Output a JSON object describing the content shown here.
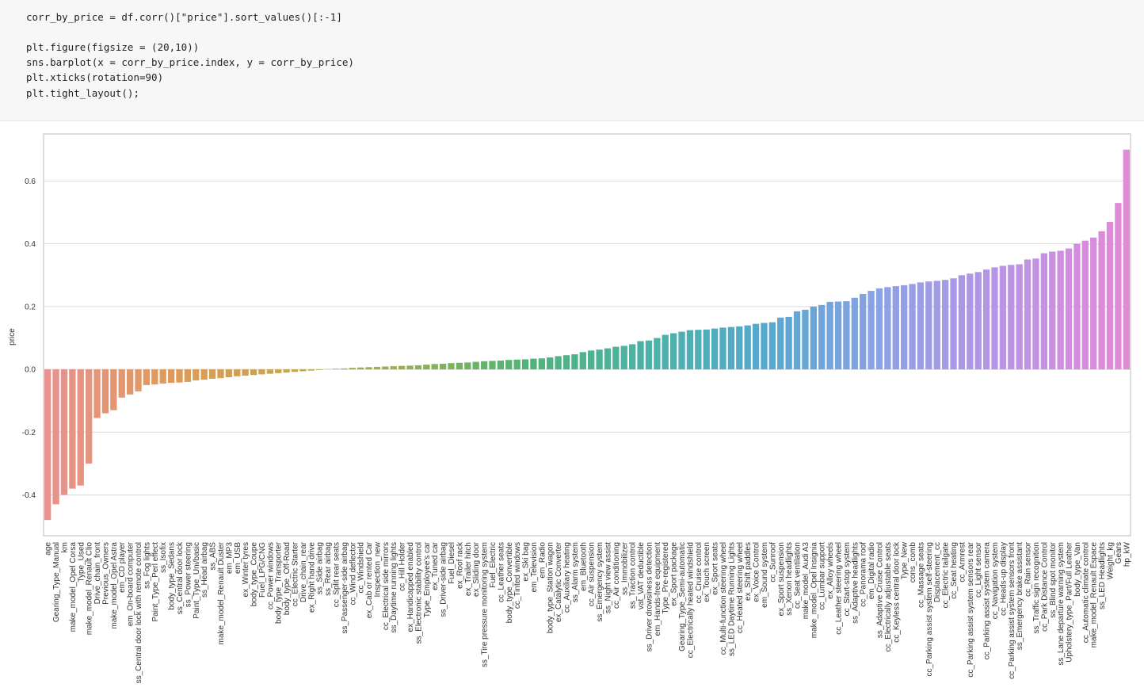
{
  "code": {
    "lines": [
      "corr_by_price = df.corr()[\"price\"].sort_values()[:-1]",
      "plt.figure(figsize = (20,10))",
      "sns.barplot(x = corr_by_price.index, y = corr_by_price)",
      "plt.xticks(rotation=90)",
      "plt.tight_layout();"
    ]
  },
  "chart_data": {
    "type": "bar",
    "y_label": "price",
    "categories": [
      "age",
      "Gearing_Type_Manual",
      "km",
      "make_model_Opel Corsa",
      "Type_Used",
      "make_model_Renault Clio",
      "Drive_chain_front",
      "Previous_Owners",
      "make_model_Opel Astra",
      "em_CD player",
      "em_On-board computer",
      "ss_Central door lock with remote control",
      "ss_Fog lights",
      "Paint_Type_Perl effect",
      "ss_Isofix",
      "body_type_Sedans",
      "ss_Central door lock",
      "ss_Power steering",
      "Paint_Type_Uni/basic",
      "ss_Head airbag",
      "ss_ABS",
      "make_model_Renault Duster",
      "em_MP3",
      "em_USB",
      "ex_Winter tyres",
      "body_type_Coupe",
      "Fuel_LPG/CNG",
      "cc_Power windows",
      "body_type_Transporter",
      "body_type_Off-Road",
      "cc_Electric Starter",
      "Drive_chain_rear",
      "ex_Right hand drive",
      "ss_Side airbag",
      "ss_Rear airbag",
      "cc_Split rear seats",
      "ss_Passenger-side airbag",
      "cc_Wind deflector",
      "cc_Windshield",
      "ex_Cab or rented Car",
      "Inspection_new",
      "cc_Electrical side mirrors",
      "ss_Daytime running lights",
      "cc_Hill Holder",
      "ex_Handicapped enabled",
      "ss_Electronic stability control",
      "Type_Employee's car",
      "ex_Tuned car",
      "ss_Driver-side airbag",
      "Fuel_Diesel",
      "ex_Roof rack",
      "ex_Trailer hitch",
      "ex_Sliding door",
      "ss_Tire pressure monitoring system",
      "Fuel_Electric",
      "cc_Leather seats",
      "body_type_Convertible",
      "cc_Tinted windows",
      "ex_Ski bag",
      "em_Television",
      "em_Radio",
      "body_type_Station wagon",
      "ex_Catalytic Converter",
      "cc_Auxiliary heating",
      "ss_Alarm system",
      "em_Bluetooth",
      "cc_Air suspension",
      "ss_Emergency system",
      "ss_Night view assist",
      "cc_Air conditioning",
      "ss_Immobilizer",
      "ss_Traction control",
      "vat_VAT deductible",
      "ss_Driver drowsiness detection",
      "em_Hands-free equipment",
      "Type_Pre-registered",
      "ex_Sport package",
      "Gearing_Type_Semi-automatic",
      "cc_Electrically heated windshield",
      "cc_Cruise control",
      "ex_Touch screen",
      "ex_Sport seats",
      "cc_Multi-function steering wheel",
      "ss_LED Daytime Running Lights",
      "cc_Heated steering wheel",
      "ex_Shift paddles",
      "ex_Voice Control",
      "em_Sound system",
      "cc_Sunroof",
      "ex_Sport suspension",
      "ss_Xenon headlights",
      "cc_Seat ventilation",
      "make_model_Audi A3",
      "make_model_Opel Insignia",
      "cc_Lumbar support",
      "ex_Alloy wheels",
      "cc_Leather steering wheel",
      "cc_Start-stop system",
      "ss_Adaptive headlights",
      "cc_Panorama roof",
      "em_Digital radio",
      "ss_Adaptive Cruise Control",
      "cc_Electrically adjustable seats",
      "cc_Keyless central door lock",
      "Type_New",
      "cons_comb",
      "cc_Massage seats",
      "cc_Parking assist system self-steering",
      "Displacement_cc",
      "cc_Electric tailgate",
      "cc_Seat heating",
      "cc_Armrest",
      "cc_Parking assist system sensors rear",
      "cc_Light sensor",
      "cc_Parking assist system camera",
      "cc_Navigation system",
      "cc_Heads-up display",
      "cc_Parking assist system sensors front",
      "ss_Emergency brake assistant",
      "cc_Rain sensor",
      "ss_Traffic sign recognition",
      "cc_Park Distance Control",
      "ss_Blind spot monitor",
      "ss_Lane departure warning system",
      "Upholstery_type_Part/Full Leather",
      "body_type_Van",
      "cc_Automatic climate control",
      "make_model_Renault Espace",
      "ss_LED Headlights",
      "Weight_kg",
      "Gears",
      "hp_kW"
    ],
    "values": [
      -0.48,
      -0.43,
      -0.4,
      -0.38,
      -0.37,
      -0.3,
      -0.155,
      -0.14,
      -0.13,
      -0.09,
      -0.08,
      -0.07,
      -0.05,
      -0.048,
      -0.045,
      -0.043,
      -0.042,
      -0.04,
      -0.035,
      -0.033,
      -0.03,
      -0.028,
      -0.025,
      -0.022,
      -0.02,
      -0.018,
      -0.016,
      -0.014,
      -0.012,
      -0.01,
      -0.008,
      -0.006,
      -0.004,
      -0.002,
      0.001,
      0.002,
      0.003,
      0.005,
      0.006,
      0.007,
      0.008,
      0.009,
      0.01,
      0.011,
      0.012,
      0.013,
      0.015,
      0.017,
      0.018,
      0.02,
      0.021,
      0.022,
      0.024,
      0.026,
      0.027,
      0.028,
      0.03,
      0.031,
      0.032,
      0.034,
      0.035,
      0.038,
      0.042,
      0.045,
      0.048,
      0.055,
      0.06,
      0.063,
      0.067,
      0.072,
      0.075,
      0.08,
      0.09,
      0.092,
      0.1,
      0.11,
      0.115,
      0.12,
      0.125,
      0.126,
      0.127,
      0.13,
      0.133,
      0.135,
      0.137,
      0.14,
      0.145,
      0.148,
      0.15,
      0.165,
      0.167,
      0.185,
      0.19,
      0.2,
      0.205,
      0.215,
      0.216,
      0.217,
      0.228,
      0.24,
      0.25,
      0.258,
      0.262,
      0.265,
      0.268,
      0.272,
      0.277,
      0.28,
      0.282,
      0.285,
      0.29,
      0.3,
      0.305,
      0.31,
      0.318,
      0.325,
      0.33,
      0.333,
      0.335,
      0.35,
      0.353,
      0.37,
      0.375,
      0.378,
      0.385,
      0.4,
      0.41,
      0.42,
      0.44,
      0.47,
      0.53,
      0.7
    ],
    "colors": [
      "#e8918f",
      "#e09a5c",
      "#c6a64b",
      "#93b14c",
      "#4fb47a",
      "#4cb1a6",
      "#55a9cf",
      "#8ea0e6",
      "#bb94e6",
      "#e28ad6"
    ],
    "ylim": [
      -0.53,
      0.75
    ],
    "yticks": [
      -0.4,
      -0.2,
      {
        "value": 0,
        "label": "0.0"
      },
      0.2,
      0.4,
      0.6
    ],
    "grid": true
  }
}
